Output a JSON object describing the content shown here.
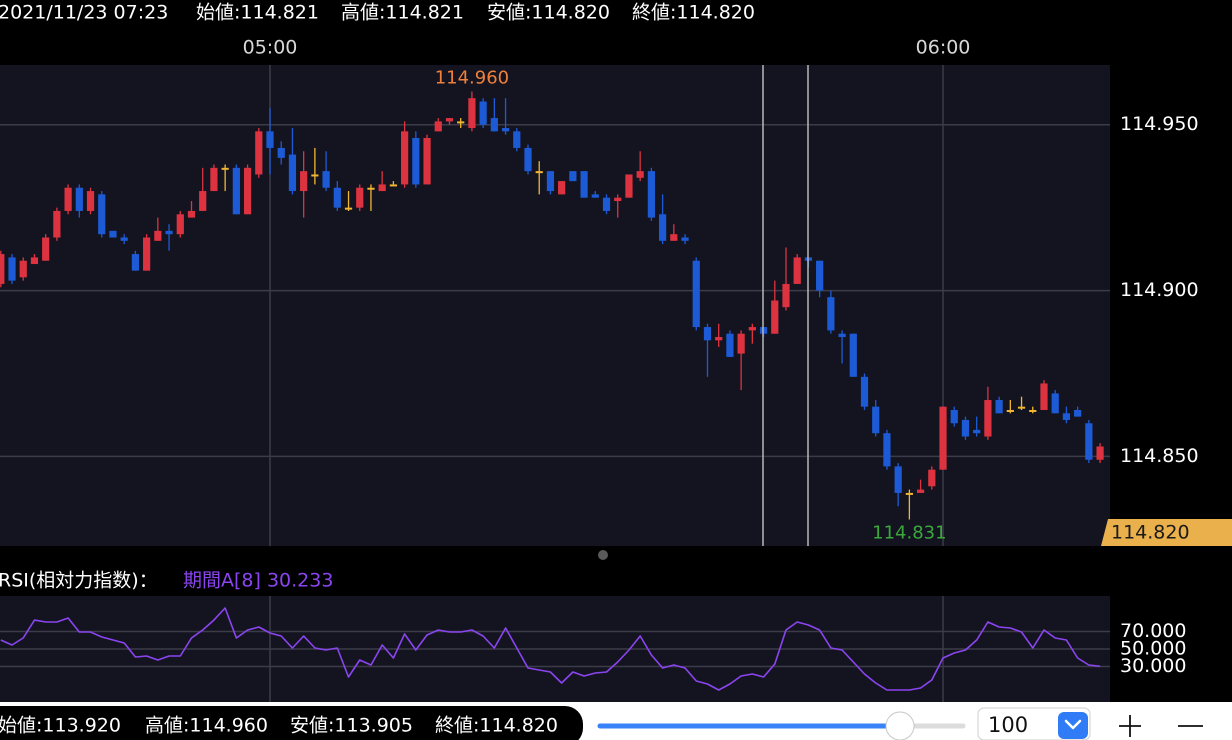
{
  "header": {
    "datetime": "2021/11/23 07:23",
    "open": "始値:114.821",
    "high": "高値:114.821",
    "low": "安値:114.820",
    "close": "終値:114.820"
  },
  "chart_data": [
    {
      "type": "candlestick",
      "categories": [
        null,
        null,
        null,
        null,
        null,
        null,
        null,
        null,
        null,
        null,
        null,
        null,
        null,
        null,
        null,
        null,
        null,
        null,
        null,
        null,
        null,
        null,
        null,
        null,
        "05:00",
        null,
        null,
        null,
        null,
        null,
        null,
        null,
        null,
        null,
        null,
        null,
        null,
        null,
        null,
        null,
        null,
        null,
        null,
        null,
        null,
        null,
        null,
        null,
        null,
        null,
        null,
        null,
        null,
        null,
        null,
        null,
        null,
        null,
        null,
        null,
        null,
        null,
        null,
        null,
        null,
        null,
        null,
        null,
        null,
        null,
        null,
        null,
        null,
        null,
        null,
        null,
        null,
        null,
        null,
        null,
        null,
        null,
        null,
        null,
        "06:00",
        null,
        null,
        null,
        null,
        null,
        null,
        null,
        null,
        null,
        null,
        null,
        null,
        null,
        null
      ],
      "open": [
        114.902,
        114.91,
        114.904,
        114.908,
        114.909,
        114.916,
        114.924,
        114.931,
        114.924,
        114.929,
        114.918,
        114.916,
        114.911,
        114.906,
        114.915,
        114.918,
        114.917,
        114.922,
        114.924,
        114.93,
        114.937,
        114.937,
        114.923,
        114.935,
        114.948,
        114.943,
        114.941,
        114.93,
        114.935,
        114.936,
        114.931,
        114.925,
        114.925,
        114.931,
        114.93,
        114.932,
        114.932,
        114.946,
        114.932,
        114.948,
        114.951,
        114.951,
        114.949,
        114.957,
        114.952,
        114.949,
        114.948,
        114.943,
        114.936,
        114.936,
        114.929,
        114.936,
        114.936,
        114.929,
        114.928,
        114.927,
        114.928,
        114.934,
        114.936,
        114.923,
        114.915,
        114.916,
        114.909,
        114.889,
        114.885,
        114.887,
        114.881,
        114.888,
        114.889,
        114.887,
        114.895,
        114.902,
        114.91,
        114.909,
        114.898,
        114.887,
        114.887,
        114.874,
        114.865,
        114.857,
        114.847,
        114.839,
        114.839,
        114.841,
        114.846,
        114.864,
        114.861,
        114.858,
        114.856,
        114.867,
        114.864,
        114.865,
        114.864,
        114.864,
        114.869,
        114.863,
        114.864,
        114.86,
        114.849
      ],
      "high": [
        114.912,
        114.911,
        114.91,
        114.911,
        114.917,
        114.925,
        114.932,
        114.932,
        114.931,
        114.93,
        114.918,
        114.917,
        114.912,
        114.917,
        114.922,
        114.92,
        114.924,
        114.927,
        114.937,
        114.938,
        114.938,
        114.938,
        114.938,
        114.949,
        114.955,
        114.945,
        114.949,
        114.942,
        114.943,
        114.942,
        114.933,
        114.93,
        114.932,
        114.932,
        114.936,
        114.933,
        114.951,
        114.948,
        114.947,
        114.952,
        114.952,
        114.952,
        114.96,
        114.958,
        114.958,
        114.958,
        114.949,
        114.944,
        114.939,
        114.936,
        114.933,
        114.936,
        114.936,
        114.93,
        114.929,
        114.929,
        114.935,
        114.942,
        114.937,
        114.929,
        114.92,
        114.917,
        114.91,
        114.89,
        114.89,
        114.888,
        114.888,
        114.89,
        114.889,
        114.903,
        114.913,
        114.911,
        114.91,
        114.909,
        114.9,
        114.888,
        114.887,
        114.875,
        114.867,
        114.858,
        114.848,
        114.84,
        114.843,
        114.847,
        114.865,
        114.865,
        114.862,
        114.862,
        114.871,
        114.868,
        114.867,
        114.868,
        114.865,
        114.873,
        114.87,
        114.865,
        114.865,
        114.861,
        114.854
      ],
      "low": [
        114.901,
        114.902,
        114.903,
        114.908,
        114.909,
        114.915,
        114.923,
        114.922,
        114.923,
        114.916,
        114.916,
        114.914,
        114.906,
        114.906,
        114.915,
        114.912,
        114.916,
        114.922,
        114.924,
        114.93,
        114.93,
        114.923,
        114.923,
        114.934,
        114.935,
        114.938,
        114.929,
        114.922,
        114.932,
        114.93,
        114.924,
        114.924,
        114.924,
        114.924,
        114.93,
        114.932,
        114.931,
        114.931,
        114.932,
        114.948,
        114.95,
        114.949,
        114.948,
        114.949,
        114.948,
        114.947,
        114.942,
        114.935,
        114.929,
        114.929,
        114.929,
        114.933,
        114.928,
        114.928,
        114.923,
        114.922,
        114.928,
        114.933,
        114.921,
        114.914,
        114.915,
        114.914,
        114.888,
        114.874,
        114.883,
        114.88,
        114.87,
        114.884,
        114.886,
        114.887,
        114.894,
        114.902,
        114.907,
        114.898,
        114.887,
        114.878,
        114.874,
        114.864,
        114.856,
        114.846,
        114.835,
        114.831,
        114.839,
        114.84,
        114.846,
        114.859,
        114.855,
        114.856,
        114.855,
        114.863,
        114.863,
        114.864,
        114.863,
        114.864,
        114.863,
        114.86,
        114.862,
        114.848,
        114.848
      ],
      "close": [
        114.911,
        114.903,
        114.909,
        114.91,
        114.916,
        114.924,
        114.931,
        114.924,
        114.93,
        114.917,
        114.916,
        114.915,
        114.906,
        114.916,
        114.918,
        114.917,
        114.923,
        114.924,
        114.93,
        114.937,
        114.937,
        114.923,
        114.937,
        114.948,
        114.943,
        114.94,
        114.93,
        114.936,
        114.935,
        114.931,
        114.925,
        114.925,
        114.931,
        114.931,
        114.932,
        114.932,
        114.948,
        114.932,
        114.946,
        114.951,
        114.952,
        114.951,
        114.958,
        114.95,
        114.948,
        114.948,
        114.943,
        114.936,
        114.936,
        114.93,
        114.933,
        114.933,
        114.928,
        114.928,
        114.924,
        114.928,
        114.935,
        114.936,
        114.922,
        114.915,
        114.917,
        114.915,
        114.889,
        114.885,
        114.886,
        114.88,
        114.887,
        114.889,
        114.887,
        114.897,
        114.902,
        114.91,
        114.909,
        114.9,
        114.888,
        114.886,
        114.874,
        114.865,
        114.857,
        114.847,
        114.839,
        114.839,
        114.84,
        114.846,
        114.865,
        114.86,
        114.856,
        114.857,
        114.867,
        114.863,
        114.864,
        114.865,
        114.864,
        114.872,
        114.863,
        114.861,
        114.862,
        114.849,
        114.853
      ],
      "ylim": [
        114.823,
        114.968
      ],
      "yticks": [
        {
          "value": 114.85,
          "label": "114.850"
        },
        {
          "value": 114.9,
          "label": "114.900"
        },
        {
          "value": 114.95,
          "label": "114.950"
        }
      ],
      "grid": true,
      "up_color": "#dd3340",
      "down_color": "#1d5bd6",
      "flat_color": "#f2b731",
      "high_label": "114.960",
      "high_label_color": "#f0803a",
      "low_label": "114.831",
      "low_label_color": "#3aa83a",
      "last_price_label": "114.820",
      "last_price_color": "#e9b04c"
    },
    {
      "type": "line",
      "title": "RSI(相対力指数)：",
      "subtitle": "期間A[8] 30.233",
      "subtitle_color": "#8b45f0",
      "color": "#8b45f0",
      "values": [
        60.3,
        54.6,
        62.6,
        83.1,
        80.9,
        80.9,
        85.4,
        69.4,
        69.4,
        63.7,
        60.3,
        56.9,
        40.9,
        42.0,
        37.4,
        42.0,
        42.0,
        62.6,
        71.7,
        83.1,
        96.9,
        62.6,
        71.7,
        75.1,
        68.3,
        64.9,
        51.1,
        64.9,
        51.1,
        48.9,
        51.1,
        18.0,
        37.4,
        31.7,
        54.6,
        39.7,
        67.1,
        48.9,
        66.0,
        71.7,
        69.4,
        69.4,
        71.7,
        64.9,
        51.1,
        74.0,
        51.1,
        28.3,
        26.0,
        23.7,
        11.1,
        23.7,
        19.1,
        22.6,
        23.7,
        35.1,
        48.9,
        64.9,
        43.1,
        28.3,
        31.7,
        28.3,
        13.4,
        10.0,
        3.1,
        10.0,
        19.1,
        21.4,
        18.0,
        32.9,
        71.7,
        80.9,
        77.4,
        71.7,
        51.1,
        48.9,
        35.1,
        21.4,
        11.1,
        3.1,
        3.1,
        3.1,
        5.4,
        14.6,
        39.7,
        45.4,
        48.9,
        60.3,
        80.9,
        75.1,
        74.0,
        69.4,
        51.1,
        71.7,
        62.6,
        60.3,
        39.7,
        31.7,
        30.2
      ],
      "ylim": [
        -10.6,
        110.6
      ],
      "yticks": [
        {
          "value": 30,
          "label": "30.000"
        },
        {
          "value": 50,
          "label": "50.000"
        },
        {
          "value": 70,
          "label": "70.000"
        }
      ],
      "grid": true
    }
  ],
  "footer": {
    "open": "始値:113.920",
    "high": "高値:114.960",
    "low": "安値:113.905",
    "close": "終値:114.820"
  },
  "controls": {
    "bar_count": 100
  }
}
